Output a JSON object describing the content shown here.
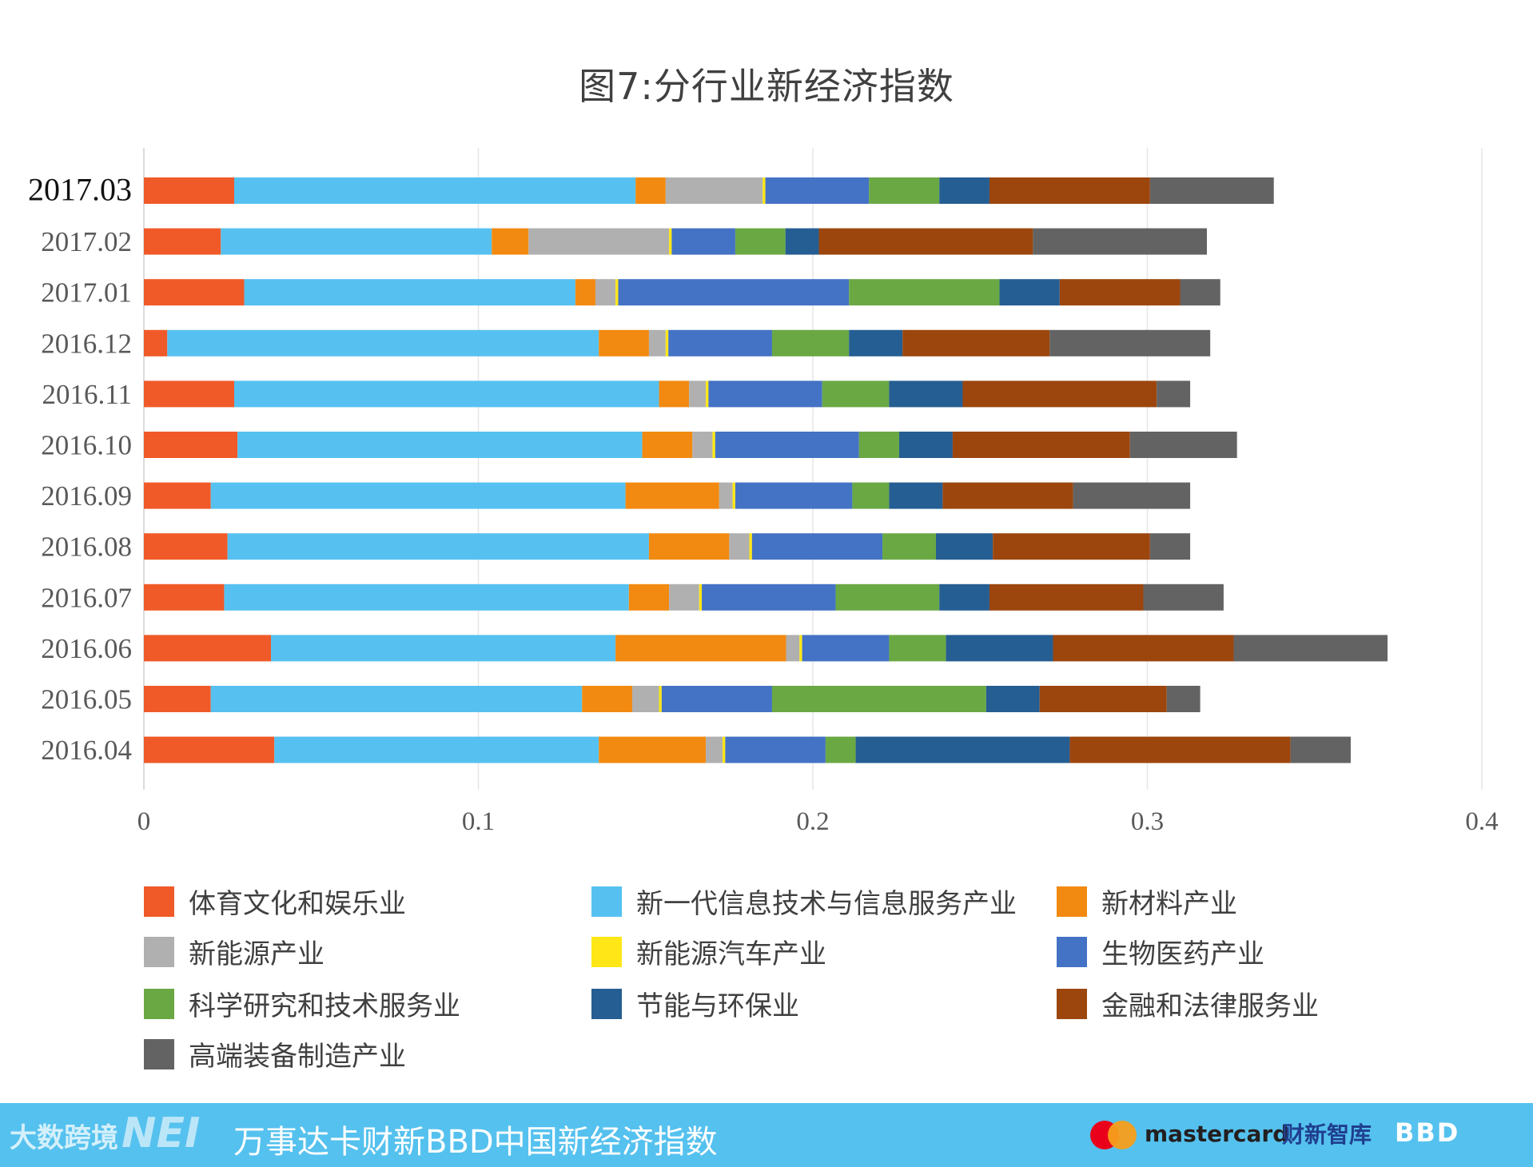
{
  "chart_data": {
    "type": "bar",
    "orientation": "horizontal",
    "stacked": true,
    "title": "图7:分行业新经济指数",
    "categories": [
      "2017.03",
      "2017.02",
      "2017.01",
      "2016.12",
      "2016.11",
      "2016.10",
      "2016.09",
      "2016.08",
      "2016.07",
      "2016.06",
      "2016.05",
      "2016.04"
    ],
    "xlim": [
      0,
      0.4
    ],
    "xticks": [
      "0",
      "0.1",
      "0.2",
      "0.3",
      "0.4"
    ],
    "grid": true,
    "legend_position": "bottom",
    "series": [
      {
        "name": "体育文化和娱乐业",
        "color": "#f05a28",
        "values": [
          0.027,
          0.023,
          0.03,
          0.007,
          0.027,
          0.028,
          0.02,
          0.025,
          0.024,
          0.038,
          0.02,
          0.039
        ]
      },
      {
        "name": "新一代信息技术与信息服务产业",
        "color": "#56c1f0",
        "values": [
          0.12,
          0.081,
          0.099,
          0.129,
          0.127,
          0.121,
          0.124,
          0.126,
          0.121,
          0.103,
          0.111,
          0.097
        ]
      },
      {
        "name": "新材料产业",
        "color": "#f28a11",
        "values": [
          0.009,
          0.011,
          0.006,
          0.015,
          0.009,
          0.015,
          0.028,
          0.024,
          0.012,
          0.051,
          0.015,
          0.032
        ]
      },
      {
        "name": "新能源产业",
        "color": "#b0b0b0",
        "values": [
          0.029,
          0.042,
          0.006,
          0.005,
          0.005,
          0.006,
          0.004,
          0.006,
          0.009,
          0.004,
          0.008,
          0.005
        ]
      },
      {
        "name": "新能源汽车产业",
        "color": "#ffe616",
        "values": [
          0.0008,
          0.0008,
          0.0008,
          0.0008,
          0.0008,
          0.0008,
          0.0008,
          0.0008,
          0.0008,
          0.0008,
          0.0008,
          0.0008
        ]
      },
      {
        "name": "生物医药产业",
        "color": "#4472c4",
        "values": [
          0.031,
          0.019,
          0.069,
          0.031,
          0.034,
          0.043,
          0.035,
          0.039,
          0.04,
          0.026,
          0.033,
          0.03
        ]
      },
      {
        "name": "科学研究和技术服务业",
        "color": "#6aa844",
        "values": [
          0.021,
          0.015,
          0.045,
          0.023,
          0.02,
          0.012,
          0.011,
          0.016,
          0.031,
          0.017,
          0.064,
          0.009
        ]
      },
      {
        "name": "节能与环保业",
        "color": "#255e92",
        "values": [
          0.015,
          0.01,
          0.018,
          0.016,
          0.022,
          0.016,
          0.016,
          0.017,
          0.015,
          0.032,
          0.016,
          0.064
        ]
      },
      {
        "name": "金融和法律服务业",
        "color": "#9c460e",
        "values": [
          0.048,
          0.064,
          0.036,
          0.044,
          0.058,
          0.053,
          0.039,
          0.047,
          0.046,
          0.054,
          0.038,
          0.066
        ]
      },
      {
        "name": "高端装备制造产业",
        "color": "#636363",
        "values": [
          0.037,
          0.052,
          0.012,
          0.048,
          0.01,
          0.032,
          0.035,
          0.012,
          0.024,
          0.046,
          0.01,
          0.018
        ]
      }
    ]
  },
  "footer": {
    "watermark": "大数跨境",
    "nei_logo": "NEI",
    "title": "万事达卡财新BBD中国新经济指数",
    "mastercard": "mastercard",
    "caixin": "财新智库",
    "bbd": "BBD"
  }
}
